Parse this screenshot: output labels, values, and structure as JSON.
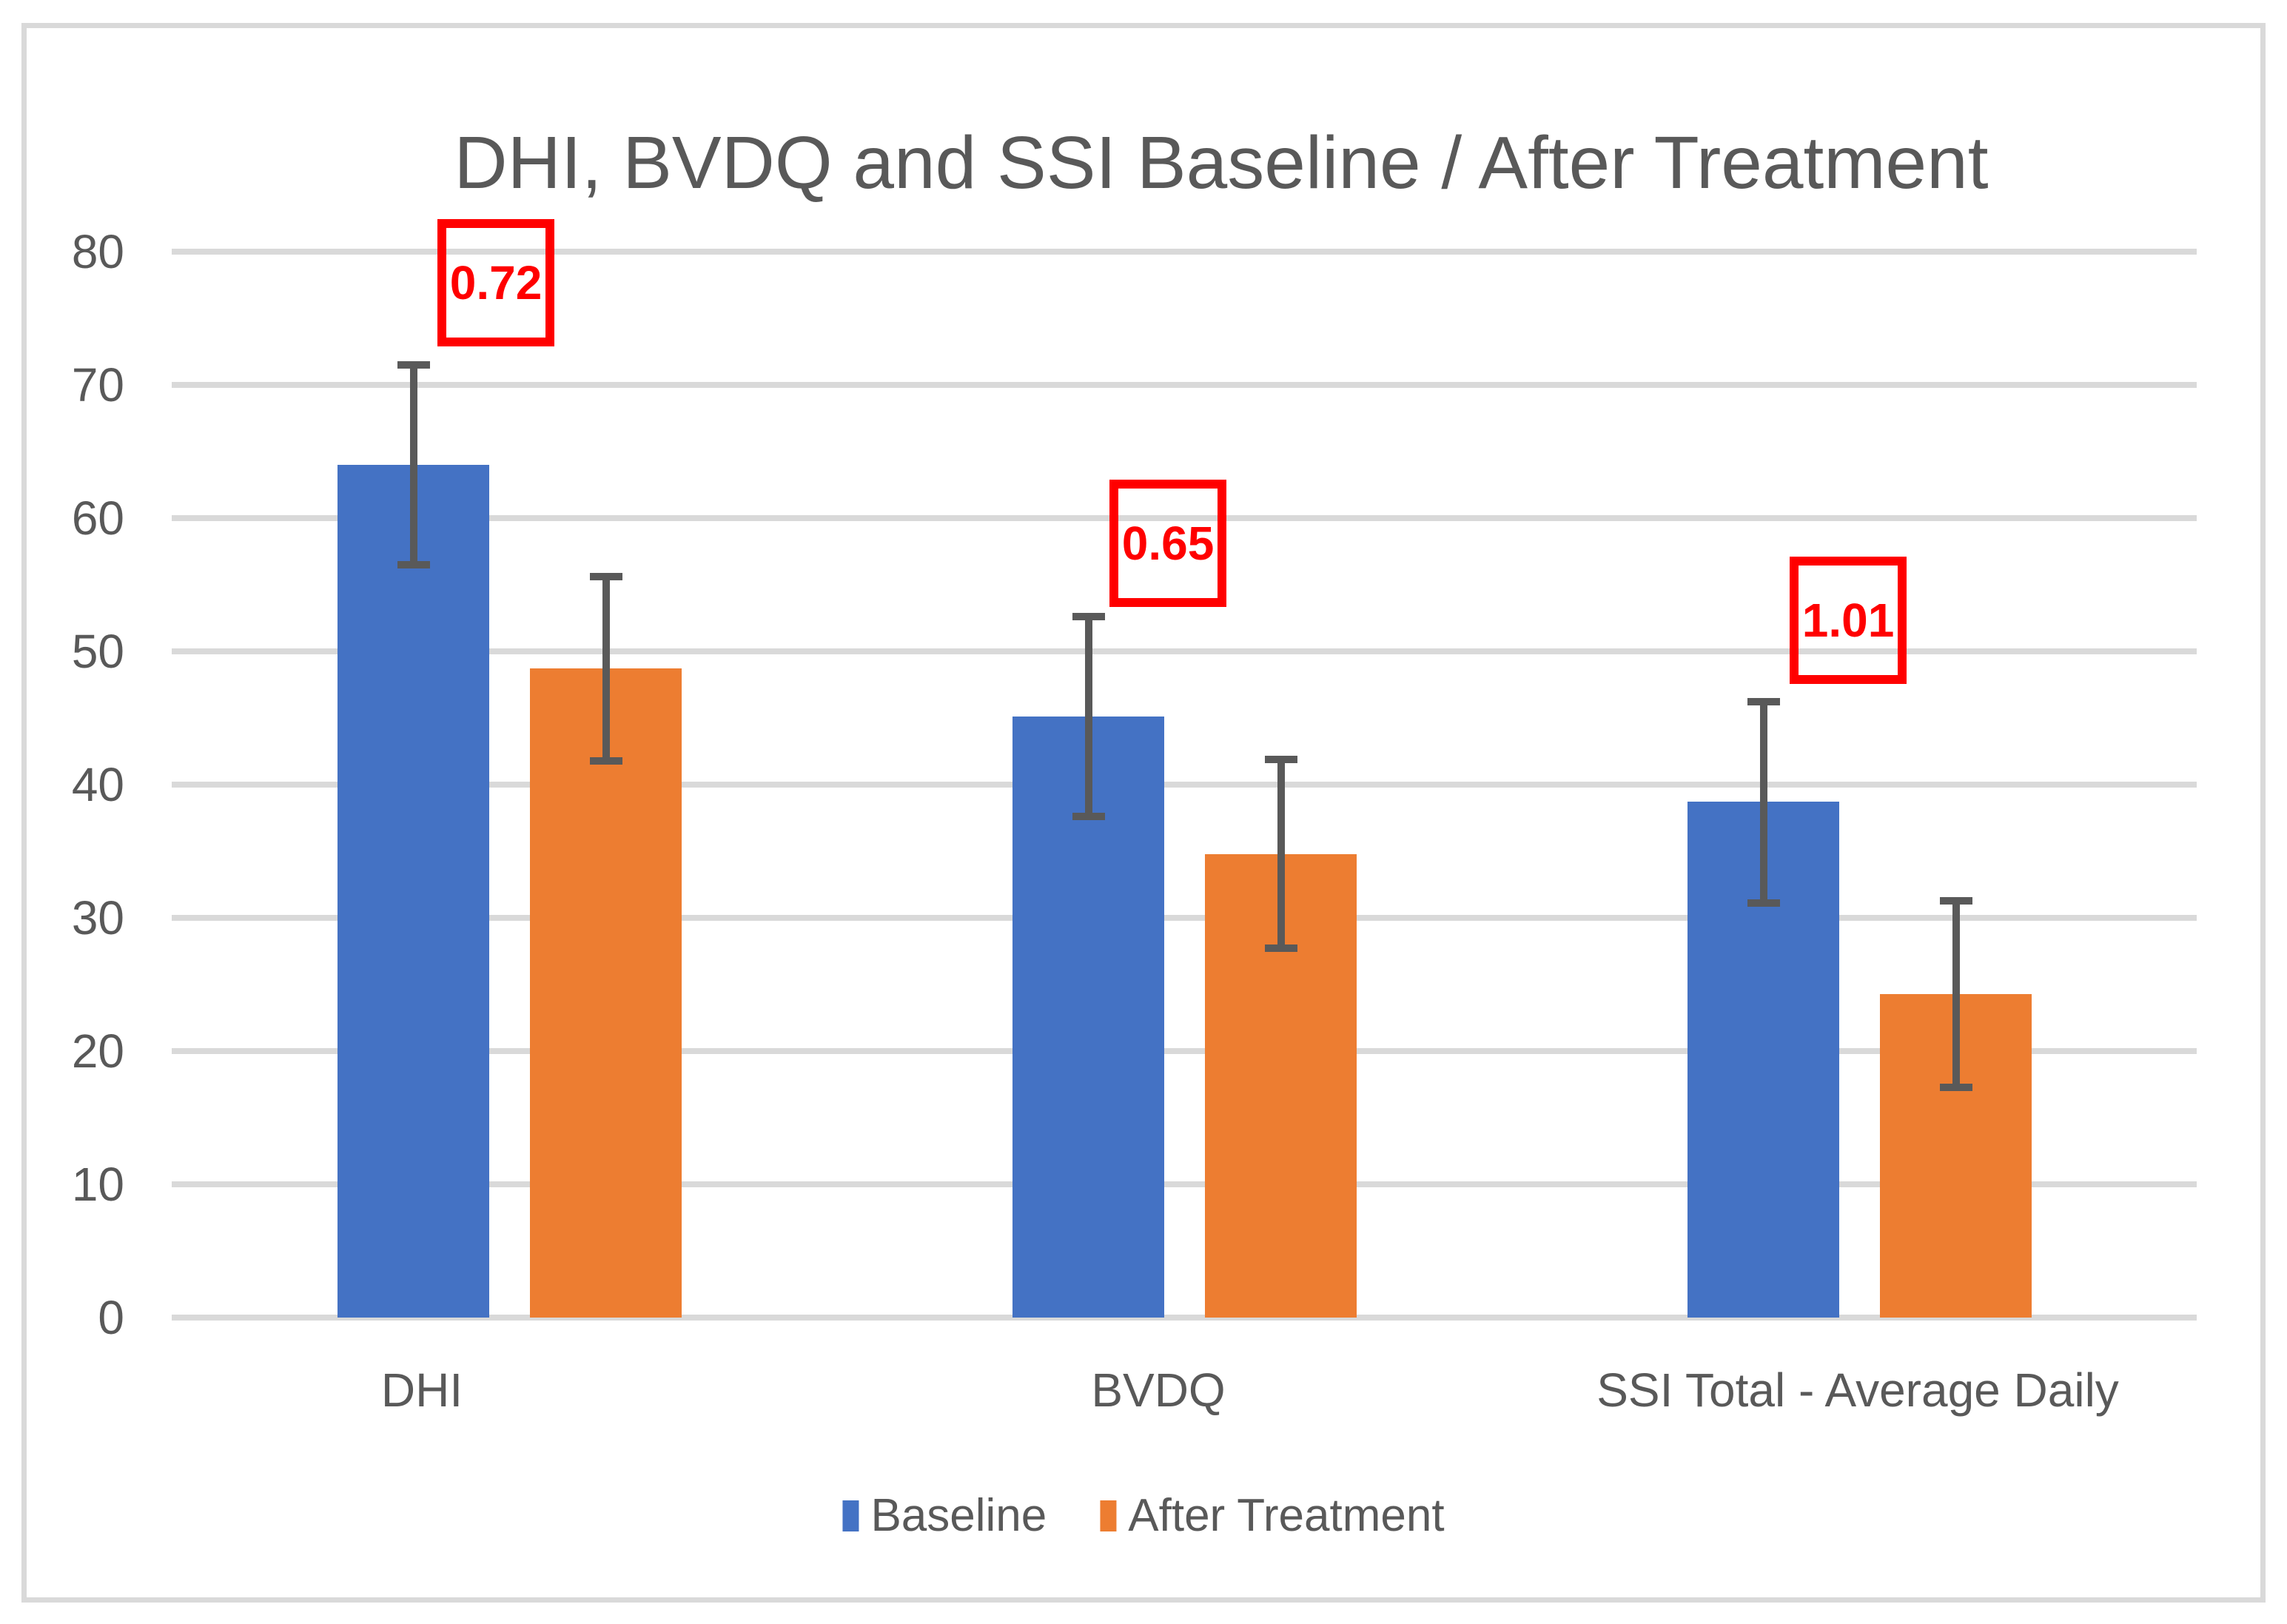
{
  "chart_data": {
    "type": "bar",
    "title": "DHI, BVDQ and SSI Baseline / After Treatment",
    "categories": [
      "DHI",
      "BVDQ",
      "SSI Total - Average Daily"
    ],
    "series": [
      {
        "name": "Baseline",
        "color": "#4472C4",
        "values": [
          64.0,
          45.1,
          38.7
        ],
        "error_plus": [
          7.5,
          7.5,
          7.5
        ],
        "error_minus": [
          7.5,
          7.5,
          7.6
        ]
      },
      {
        "name": "After Treatment",
        "color": "#ED7D31",
        "values": [
          48.7,
          34.8,
          24.3
        ],
        "error_plus": [
          6.9,
          7.1,
          7.0
        ],
        "error_minus": [
          6.9,
          7.1,
          7.0
        ]
      }
    ],
    "annotations": [
      {
        "label": "0.72",
        "category": "DHI"
      },
      {
        "label": "0.65",
        "category": "BVDQ"
      },
      {
        "label": "1.01",
        "category": "SSI Total - Average Daily"
      }
    ],
    "y_axis": {
      "min": 0,
      "max": 80,
      "step": 10,
      "ticks": [
        "0",
        "10",
        "20",
        "30",
        "40",
        "50",
        "60",
        "70",
        "80"
      ]
    },
    "x_axis": {
      "label": ""
    },
    "grid": true,
    "legend_position": "bottom",
    "colors": {
      "bar_blue": "#4472C4",
      "bar_orange": "#ED7D31",
      "error_bar": "#595959",
      "gridline": "#D9D9D9",
      "text": "#595959",
      "annotation_red": "#FF0000",
      "frame_border": "#D9D9D9",
      "background": "#FFFFFF"
    }
  }
}
